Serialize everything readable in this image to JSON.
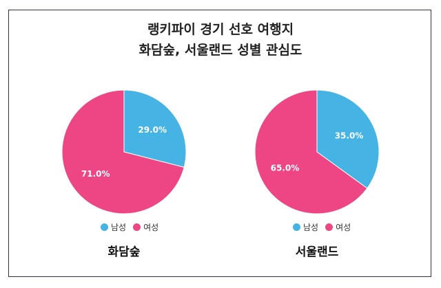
{
  "title_line1": "랭키파이 경기 선호 여행지",
  "title_line2": "화담숲, 서울랜드 성별 관심도",
  "colors": {
    "male": "#45b4e4",
    "female": "#ee4584",
    "border": "#2b2f4a"
  },
  "chart_data": [
    {
      "type": "pie",
      "title": "화담숲",
      "categories": [
        "남성",
        "여성"
      ],
      "values": [
        29.0,
        71.0
      ],
      "labels": [
        "29.0%",
        "71.0%"
      ],
      "legend": [
        "남성",
        "여성"
      ]
    },
    {
      "type": "pie",
      "title": "서울랜드",
      "categories": [
        "남성",
        "여성"
      ],
      "values": [
        35.0,
        65.0
      ],
      "labels": [
        "35.0%",
        "65.0%"
      ],
      "legend": [
        "남성",
        "여성"
      ]
    }
  ]
}
